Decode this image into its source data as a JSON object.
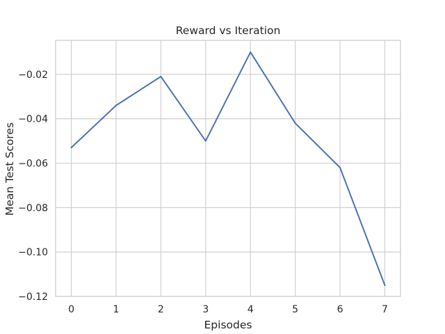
{
  "chart_data": {
    "type": "line",
    "title": "Reward vs Iteration",
    "xlabel": "Episodes",
    "ylabel": "Mean Test Scores",
    "x": [
      0,
      1,
      2,
      3,
      4,
      5,
      6,
      7
    ],
    "series": [
      {
        "values": [
          -0.053,
          -0.034,
          -0.021,
          -0.05,
          -0.01,
          -0.042,
          -0.062,
          -0.115
        ]
      }
    ],
    "xticks": [
      "0",
      "1",
      "2",
      "3",
      "4",
      "5",
      "6",
      "7"
    ],
    "yticks": [
      -0.12,
      -0.1,
      -0.08,
      -0.06,
      -0.04,
      -0.02
    ],
    "ytick_labels": [
      "−0.12",
      "−0.10",
      "−0.08",
      "−0.06",
      "−0.04",
      "−0.02"
    ],
    "xlim": [
      -0.35,
      7.35
    ],
    "ylim": [
      -0.12,
      -0.0047
    ],
    "grid": true,
    "legend": false,
    "colors": {
      "line": "#4c72b0",
      "grid": "#cccccc",
      "background": "#ffffff",
      "text": "#262626"
    }
  }
}
